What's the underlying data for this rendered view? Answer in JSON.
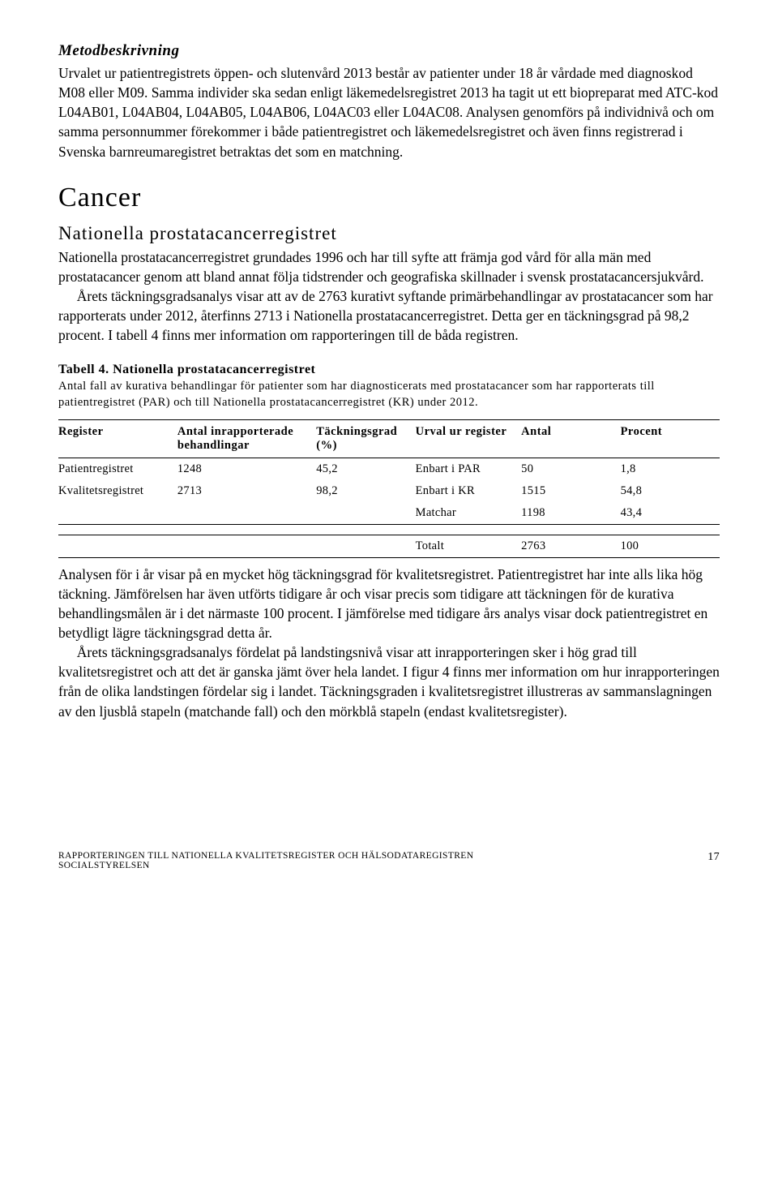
{
  "sec1": {
    "heading": "Metodbeskrivning",
    "p": "Urvalet ur patientregistrets öppen- och slutenvård 2013 består av patienter under 18 år vårdade med diagnoskod M08 eller M09. Samma individer ska sedan enligt läkemedelsregistret 2013 ha tagit ut ett biopreparat med ATC-kod L04AB01, L04AB04, L04AB05, L04AB06, L04AC03 eller L04AC08. Analysen genomförs på individnivå och om samma personnummer förekommer i både patientregistret och läkemedelsregistret och även finns registrerad i Svenska barnreumaregistret betraktas det som en matchning."
  },
  "sec2": {
    "heading": "Cancer",
    "sub": "Nationella prostatacancerregistret",
    "p1": "Nationella prostatacancerregistret grundades 1996 och har till syfte att främja god vård för alla män med prostatacancer genom att bland annat följa tidstrender och geografiska skillnader i svensk prostatacancersjukvård.",
    "p2": "Årets täckningsgradsanalys visar att av de 2763 kurativt syftande primärbehandlingar av prostatacancer som har rapporterats under 2012, återfinns 2713 i Nationella prostatacancerregistret. Detta ger en täckningsgrad på 98,2 procent. I tabell 4 finns mer information om rapporteringen till de båda registren."
  },
  "table": {
    "title": "Tabell 4. Nationella prostatacancerregistret",
    "caption": "Antal fall av kurativa behandlingar för patienter som har diagnosticerats med prostatacancer som har rapporterats till patientregistret (PAR) och till Nationella prostatacancerregistret (KR) under 2012.",
    "head": {
      "c1": "Register",
      "c2": "Antal inrapporterade behandlingar",
      "c3": "Täckningsgrad (%)",
      "c4": "Urval ur register",
      "c5": "Antal",
      "c6": "Procent"
    },
    "r1": {
      "c1": "Patientregistret",
      "c2": "1248",
      "c3": "45,2",
      "c4": "Enbart i PAR",
      "c5": "50",
      "c6": "1,8"
    },
    "r2": {
      "c1": "Kvalitetsregistret",
      "c2": "2713",
      "c3": "98,2",
      "c4": "Enbart i KR",
      "c5": "1515",
      "c6": "54,8"
    },
    "r3": {
      "c4": "Matchar",
      "c5": "1198",
      "c6": "43,4"
    },
    "tot": {
      "c4": "Totalt",
      "c5": "2763",
      "c6": "100"
    }
  },
  "sec3": {
    "p1": "Analysen för i år visar på en mycket hög täckningsgrad för kvalitetsregistret. Patientregistret har inte alls lika hög täckning. Jämförelsen har även utförts tidigare år och visar precis som tidigare att täckningen för de kurativa behandlingsmålen är i det närmaste 100 procent. I jämförelse med tidigare års analys visar dock patientregistret en betydligt lägre täckningsgrad detta år.",
    "p2": "Årets täckningsgradsanalys fördelat på landstingsnivå visar att inrapporteringen sker i hög grad till kvalitetsregistret och att det är ganska jämt över hela landet. I figur 4 finns mer information om hur inrapporteringen från de olika landstingen fördelar sig i landet. Täckningsgraden i kvalitetsregistret illustreras av sammanslagningen av den ljusblå stapeln (matchande fall) och den mörkblå stapeln (endast kvalitetsregister)."
  },
  "footer": {
    "l1": "RAPPORTERINGEN TILL NATIONELLA KVALITETSREGISTER OCH HÄLSODATAREGISTREN",
    "l2": "SOCIALSTYRELSEN",
    "page": "17"
  }
}
